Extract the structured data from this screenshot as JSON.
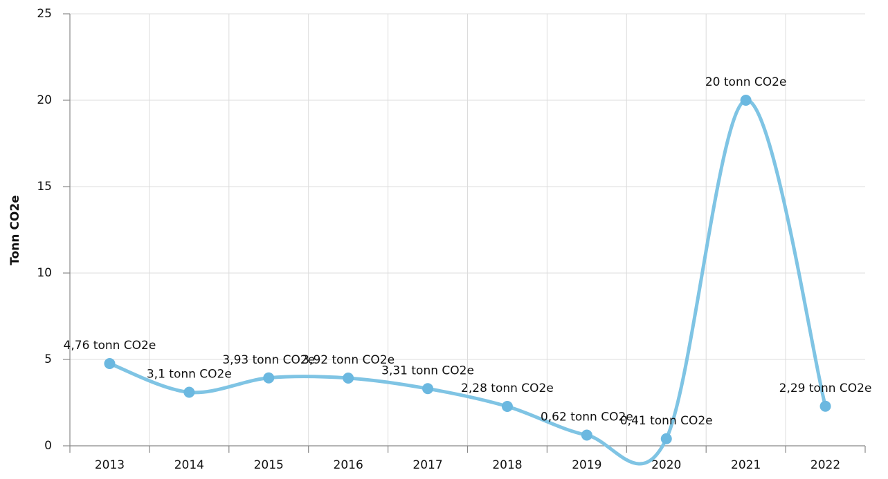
{
  "chart_data": {
    "type": "line",
    "y_label": "Tonn CO2e",
    "categories": [
      "2013",
      "2014",
      "2015",
      "2016",
      "2017",
      "2018",
      "2019",
      "2020",
      "2021",
      "2022"
    ],
    "series": [
      {
        "color": "#7fc4e4",
        "values": [
          4.76,
          3.1,
          3.93,
          3.92,
          3.31,
          2.28,
          0.62,
          0.41,
          20,
          2.29
        ],
        "value_labels": [
          "4,76 tonn CO2e",
          "3,1 tonn CO2e",
          "3,93 tonn CO2e",
          "3,92 tonn CO2e",
          "3,31 tonn CO2e",
          "2,28 tonn CO2e",
          "0,62 tonn CO2e",
          "0,41 tonn CO2e",
          "20 tonn CO2e",
          "2,29 tonn CO2e"
        ]
      }
    ],
    "ylim": [
      0,
      25
    ],
    "yticks": [
      0,
      5,
      10,
      15,
      20,
      25
    ],
    "grid": true,
    "smooth": true
  }
}
